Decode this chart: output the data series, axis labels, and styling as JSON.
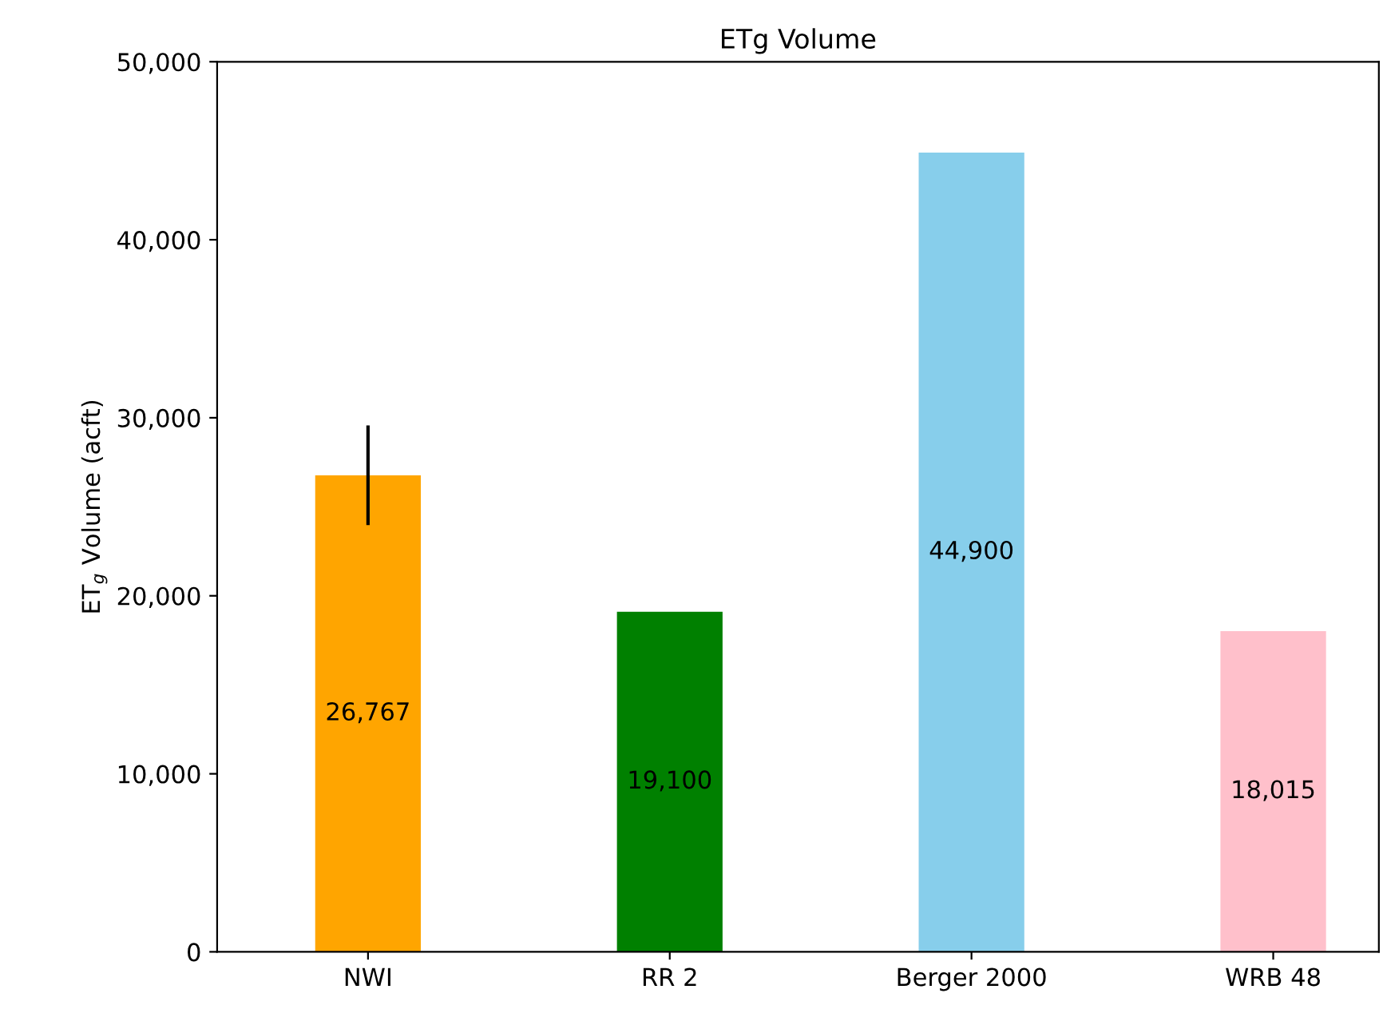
{
  "chart_data": {
    "type": "bar",
    "title": "ETg Volume",
    "ylabel": "ET$_{g}$ Volume (acft)",
    "categories": [
      "NWI",
      "RR 2",
      "Berger 2000",
      "WRB 48"
    ],
    "values": [
      26767,
      19100,
      44900,
      18015
    ],
    "colors": [
      "#ffa500",
      "#008000",
      "#87ceeb",
      "#ffc0cb"
    ],
    "errors": [
      2800,
      null,
      null,
      null
    ],
    "value_labels": [
      "26,767",
      "19,100",
      "44,900",
      "18,015"
    ],
    "ylim": [
      0,
      50000
    ],
    "yticks": [
      {
        "value": 0,
        "label": "0"
      },
      {
        "value": 10000,
        "label": "10,000"
      },
      {
        "value": 20000,
        "label": "20,000"
      },
      {
        "value": 30000,
        "label": "30,000"
      },
      {
        "value": 40000,
        "label": "40,000"
      },
      {
        "value": 50000,
        "label": "50,000"
      }
    ],
    "grid": false
  }
}
